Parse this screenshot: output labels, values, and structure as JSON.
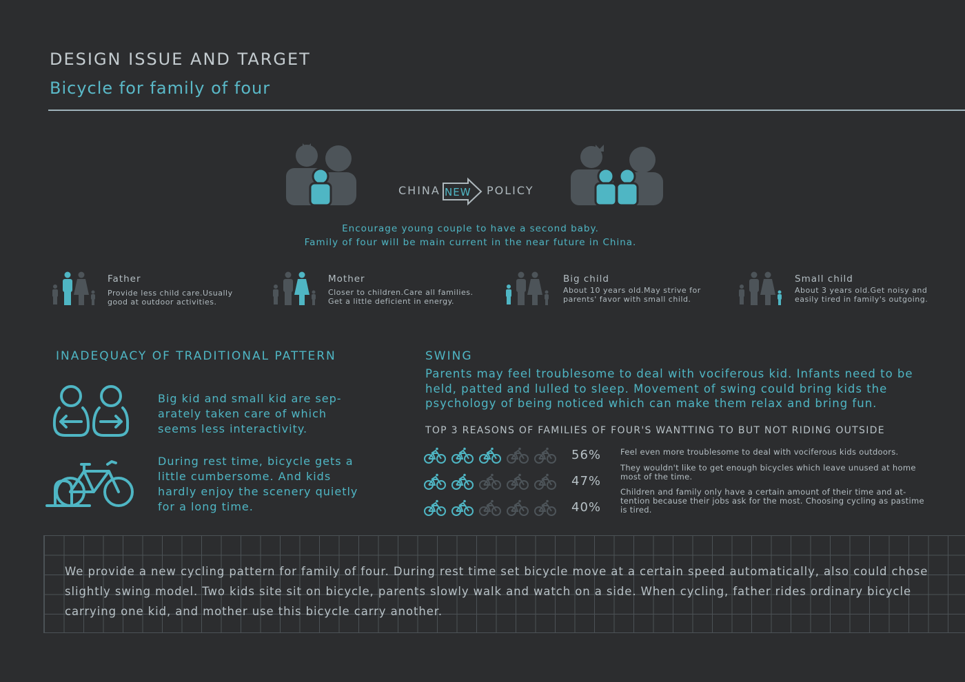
{
  "header": {
    "title": "DESIGN ISSUE AND TARGET",
    "subtitle": "Bicycle for family of four"
  },
  "policy": {
    "left": "CHINA",
    "middle": "NEW",
    "right": "POLICY",
    "encourage_line1": "Encourage young couple to have a second baby.",
    "encourage_line2": "Family of four will be main current in the near future in China."
  },
  "members": [
    {
      "name": "Father",
      "desc": "Provide less child care.Usually good at outdoor activities."
    },
    {
      "name": "Mother",
      "desc": "Closer to children.Care all families. Get a little deficient in energy."
    },
    {
      "name": "Big child",
      "desc": "About 10 years old.May strive for parents' favor with small child."
    },
    {
      "name": "Small child",
      "desc": "About 3 years old.Get noisy and easily tired in family's outgoing."
    }
  ],
  "inadequacy": {
    "heading": "INADEQUACY OF TRADITIONAL PATTERN",
    "point1": "Big kid and small kid are sep-arately taken care of which seems less interactivity.",
    "point2": "During rest time, bicycle gets a little cumbersome. And kids hardly enjoy the scenery quietly for a long time."
  },
  "swing": {
    "heading": "SWING",
    "body": "Parents may feel troublesome to deal with vociferous kid. Infants need to be held, patted and lulled to sleep. Movement of swing could bring kids the psychology of being noticed which can make them relax and bring fun."
  },
  "reasons": {
    "heading": "TOP 3 REASONS OF FAMILIES OF FOUR'S WANTTING TO BUT NOT RIDING OUTSIDE",
    "items": [
      {
        "percent": "56%",
        "value": 56,
        "filled_icons": 3,
        "text": "Feel  even more troublesome to deal with vociferous kids outdoors."
      },
      {
        "percent": "47%",
        "value": 47,
        "filled_icons": 2,
        "text": "They wouldn't like to get enough bicycles which leave unused at home most of the time."
      },
      {
        "percent": "40%",
        "value": 40,
        "filled_icons": 2,
        "text": "Children and family only have a certain amount of their time and at-tention because their jobs ask for the most.  Choosing cycling as pastime is tired."
      }
    ]
  },
  "conclusion": "We provide a new cycling pattern for family of four. During rest time set bicycle move at a certain speed automatically, also could chose slightly swing model. Two kids site sit on bicycle, parents slowly walk and watch on a side. When cycling, father rides ordinary bicycle carrying one kid, and mother use this bicycle carry another.",
  "colors": {
    "accent": "#4fb6c4",
    "muted_icon": "#4d5459",
    "background": "#2c2d2f"
  }
}
